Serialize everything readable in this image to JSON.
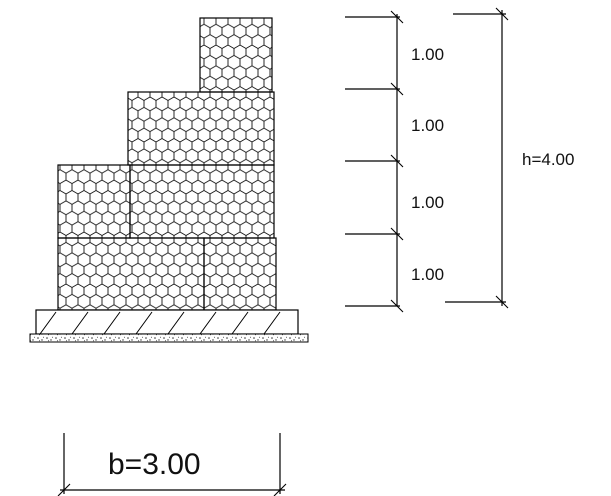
{
  "drawing": {
    "segment_labels": [
      "1.00",
      "1.00",
      "1.00",
      "1.00"
    ],
    "height_label": "h=4.00",
    "base_label": "b=3.00"
  }
}
